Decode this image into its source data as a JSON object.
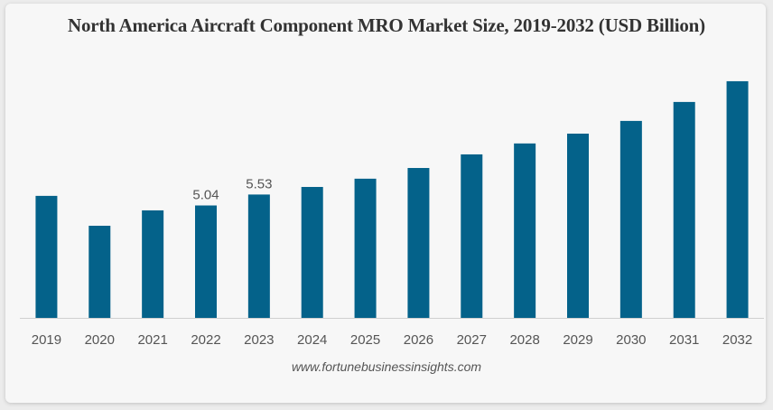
{
  "chart_data": {
    "type": "bar",
    "title": "North America Aircraft Component MRO Market Size, 2019-2032 (USD Billion)",
    "xlabel": "",
    "ylabel": "",
    "categories": [
      "2019",
      "2020",
      "2021",
      "2022",
      "2023",
      "2024",
      "2025",
      "2026",
      "2027",
      "2028",
      "2029",
      "2030",
      "2031",
      "2032"
    ],
    "values": [
      5.47,
      4.13,
      4.82,
      5.04,
      5.53,
      5.87,
      6.24,
      6.72,
      7.33,
      7.82,
      8.26,
      8.83,
      9.68,
      10.61
    ],
    "data_labels": {
      "3": "5.04",
      "4": "5.53"
    },
    "ylim": [
      0,
      11
    ],
    "grid": false,
    "legend": "none",
    "bar_color": "#04628a"
  },
  "source": "www.fortunebusinessinsights.com"
}
